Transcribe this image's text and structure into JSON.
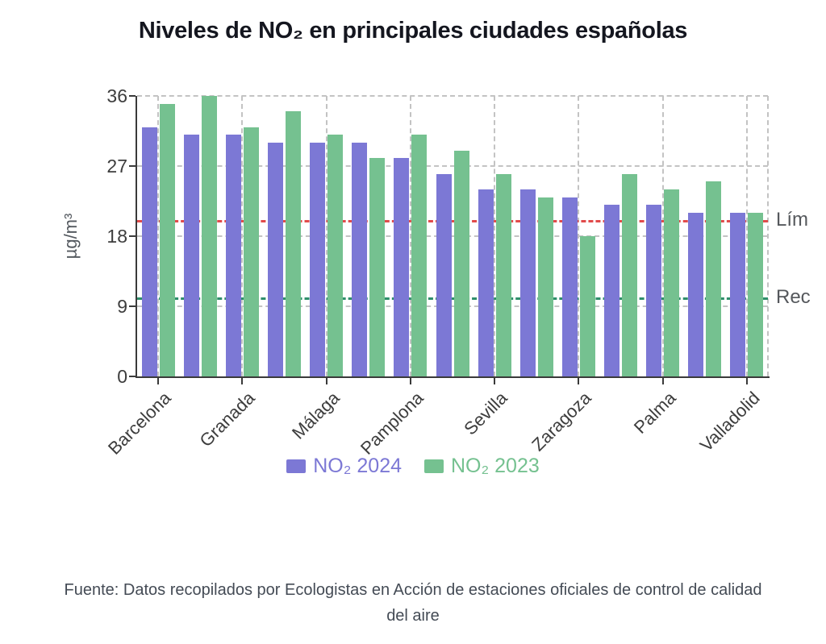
{
  "title": "Niveles de NO₂ en principales ciudades españolas",
  "footer": "Fuente: Datos recopilados por Ecologistas en Acción de estaciones oficiales de control de calidad del aire",
  "annotations": {
    "limit_label": "Lím",
    "recommendation_label": "Rec"
  },
  "colors": {
    "bar_2024": "#7c78d5",
    "bar_2023": "#75c190",
    "limit_line": "#e14b4b",
    "recommendation_line": "#2f8e6b",
    "grid": "#c3c3c3",
    "spine": "#3a3a3a"
  },
  "chart_data": {
    "type": "bar",
    "title": "Niveles de NO₂ en principales ciudades españolas",
    "xlabel": "",
    "ylabel": "µg/m³",
    "ylim": [
      0,
      36
    ],
    "yticks": [
      0,
      9,
      18,
      27,
      36
    ],
    "grid": true,
    "legend_position": "bottom",
    "n_groups": 15,
    "x_tick_labels": [
      "Barcelona",
      "Granada",
      "Málaga",
      "Pamplona",
      "Sevilla",
      "Zaragoza",
      "Palma",
      "Valladolid"
    ],
    "x_tick_group_indices": [
      0,
      2,
      4,
      6,
      8,
      10,
      12,
      14
    ],
    "series": [
      {
        "name": "NO₂ 2024",
        "color": "#7c78d5",
        "values": [
          32,
          31,
          31,
          30,
          30,
          30,
          28,
          26,
          24,
          24,
          23,
          22,
          22,
          21,
          21
        ]
      },
      {
        "name": "NO₂ 2023",
        "color": "#75c190",
        "values": [
          35,
          36,
          32,
          34,
          31,
          28,
          31,
          29,
          26,
          23,
          18,
          26,
          24,
          25,
          21
        ]
      }
    ],
    "reference_lines": [
      {
        "label": "Lím",
        "value": 20,
        "color": "#e14b4b"
      },
      {
        "label": "Rec",
        "value": 10,
        "color": "#2f8e6b"
      }
    ]
  }
}
